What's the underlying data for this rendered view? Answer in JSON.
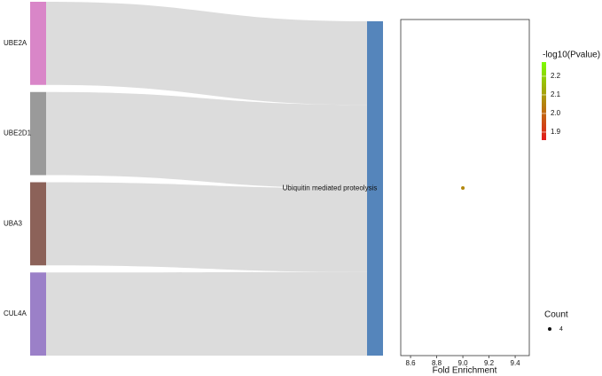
{
  "chart_data": [
    {
      "type": "sankey",
      "nodes": [
        {
          "name": "UBE2A",
          "color": "#d986c8"
        },
        {
          "name": "UBE2D1",
          "color": "#9a9a9a"
        },
        {
          "name": "UBA3",
          "color": "#8c6259"
        },
        {
          "name": "CUL4A",
          "color": "#9b80c8"
        },
        {
          "name": "Ubiquitin mediated proteolysis",
          "color": "#5585bb"
        }
      ],
      "links": [
        {
          "source": 0,
          "target": 4,
          "value": 1
        },
        {
          "source": 1,
          "target": 4,
          "value": 1
        },
        {
          "source": 2,
          "target": 4,
          "value": 1
        },
        {
          "source": 3,
          "target": 4,
          "value": 1
        }
      ],
      "link_color": "#dcdcdc"
    },
    {
      "type": "scatter",
      "x_label": "Fold Enrichment",
      "x": [
        9.0
      ],
      "color_values": [
        2.06
      ],
      "size_values": [
        4
      ],
      "xlim": [
        8.525,
        9.508
      ],
      "xticks": [
        8.6,
        8.8,
        {
          "value": 9,
          "label": "9.0"
        },
        9.2,
        9.4
      ],
      "color_legend": {
        "title": "-log10(Pvalue)",
        "lim": [
          1.857,
          2.276
        ],
        "ticks": [
          1.9,
          {
            "value": 2,
            "label": "2.0"
          },
          2.1,
          2.2
        ],
        "colors": [
          "#e41a1c",
          "#7cfc00"
        ]
      },
      "size_legend": {
        "title": "Count",
        "values": [
          4
        ]
      }
    }
  ]
}
